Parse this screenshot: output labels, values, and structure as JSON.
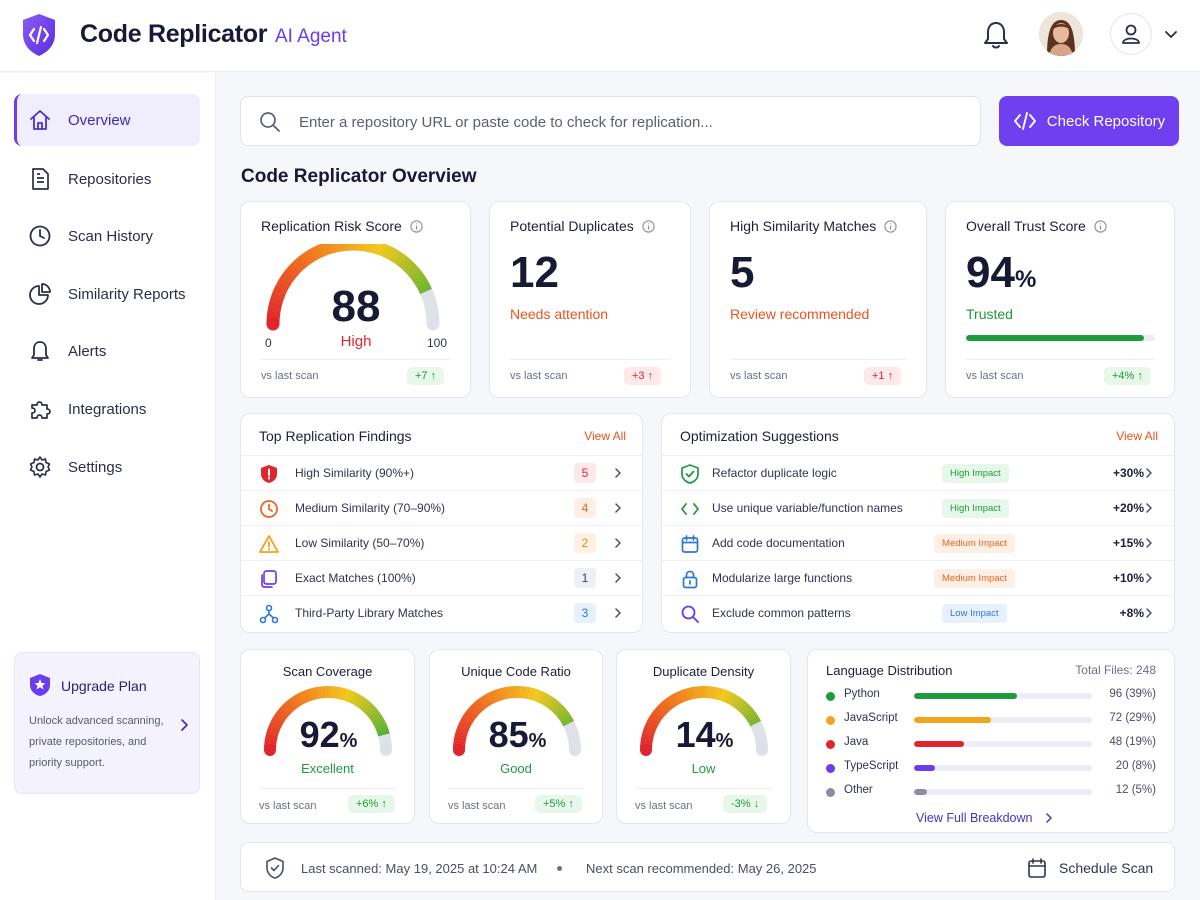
{
  "header": {
    "app_title": "Code Replicator",
    "app_subtitle": "AI Agent",
    "icons": [
      "code-shield-logo",
      "bell-icon",
      "avatar",
      "user-icon",
      "chevron-down-icon"
    ]
  },
  "sidebar": {
    "items": [
      {
        "label": "Overview",
        "icon": "home-icon",
        "active": true
      },
      {
        "label": "Repositories",
        "icon": "document-icon",
        "active": false
      },
      {
        "label": "Scan History",
        "icon": "clock-icon",
        "active": false
      },
      {
        "label": "Similarity Reports",
        "icon": "pie-chart-icon",
        "active": false
      },
      {
        "label": "Alerts",
        "icon": "bell-icon",
        "active": false
      },
      {
        "label": "Integrations",
        "icon": "puzzle-icon",
        "active": false
      },
      {
        "label": "Settings",
        "icon": "gear-icon",
        "active": false
      }
    ],
    "upgrade": {
      "title": "Upgrade Plan",
      "desc": "Unlock advanced scanning, private repositories, and priority support."
    }
  },
  "search": {
    "placeholder": "Enter a repository URL or paste code to check for replication...",
    "value": "",
    "button_label": "Check Repository"
  },
  "overview_title": "Code Replicator Overview",
  "kpis": {
    "risk": {
      "title": "Replication Risk Score",
      "value": "88",
      "level": "High",
      "min": "0",
      "max": "100",
      "vs": "vs last scan",
      "delta": "+7 ↑",
      "fraction": 0.88
    },
    "duplicates": {
      "title": "Potential Duplicates",
      "value": "12",
      "note": "Needs attention",
      "vs": "vs last scan",
      "delta": "+3 ↑"
    },
    "similarity": {
      "title": "High Similarity Matches",
      "value": "5",
      "note": "Review recommended",
      "vs": "vs last scan",
      "delta": "+1 ↑"
    },
    "trust": {
      "title": "Overall Trust Score",
      "value": "94",
      "unit": "%",
      "note": "Trusted",
      "vs": "vs last scan",
      "delta": "+4% ↑",
      "fraction": 0.94
    }
  },
  "findings": {
    "title": "Top Replication Findings",
    "view_all": "View All",
    "rows": [
      {
        "label": "High Similarity (90%+)",
        "count": "5",
        "icon": "alert-shield-icon"
      },
      {
        "label": "Medium Similarity (70–90%)",
        "count": "4",
        "icon": "clock-icon"
      },
      {
        "label": "Low Similarity (50–70%)",
        "count": "2",
        "icon": "warning-icon"
      },
      {
        "label": "Exact Matches (100%)",
        "count": "1",
        "icon": "copy-icon"
      },
      {
        "label": "Third-Party Library Matches",
        "count": "3",
        "icon": "network-icon"
      }
    ]
  },
  "suggestions": {
    "title": "Optimization Suggestions",
    "view_all": "View All",
    "rows": [
      {
        "label": "Refactor duplicate logic",
        "impact": "High Impact",
        "delta": "+30%",
        "icon": "check-shield-icon"
      },
      {
        "label": "Use unique variable/function names",
        "impact": "High Impact",
        "delta": "+20%",
        "icon": "code-icon"
      },
      {
        "label": "Add code documentation",
        "impact": "Medium Impact",
        "delta": "+15%",
        "icon": "calendar-icon"
      },
      {
        "label": "Modularize large functions",
        "impact": "Medium Impact",
        "delta": "+10%",
        "icon": "lock-icon"
      },
      {
        "label": "Exclude common patterns",
        "impact": "Low Impact",
        "delta": "+8%",
        "icon": "search-icon"
      }
    ]
  },
  "mini_gauges": [
    {
      "title": "Scan Coverage",
      "value": "92",
      "unit": "%",
      "note": "Excellent",
      "vs": "vs last scan",
      "delta": "+6% ↑",
      "fraction": 0.92
    },
    {
      "title": "Unique Code Ratio",
      "value": "85",
      "unit": "%",
      "note": "Good",
      "vs": "vs last scan",
      "delta": "+5% ↑",
      "fraction": 0.85
    },
    {
      "title": "Duplicate Density",
      "value": "14",
      "unit": "%",
      "note": "Low",
      "vs": "vs last scan",
      "delta": "-3% ↓",
      "fraction": 0.86
    }
  ],
  "languages": {
    "title": "Language Distribution",
    "total": "Total Files: 248",
    "link": "View Full Breakdown",
    "items": [
      {
        "name": "Python",
        "value": "96 (39%)",
        "color": "#1f9a3c",
        "pct": 39
      },
      {
        "name": "JavaScript",
        "value": "72 (29%)",
        "color": "#f2a41c",
        "pct": 29
      },
      {
        "name": "Java",
        "value": "48 (19%)",
        "color": "#e0262c",
        "pct": 19
      },
      {
        "name": "TypeScript",
        "value": "20 (8%)",
        "color": "#6a3df0",
        "pct": 8
      },
      {
        "name": "Other",
        "value": "12 (5%)",
        "color": "#8a8ea3",
        "pct": 5
      }
    ]
  },
  "footer": {
    "last_scanned": "Last scanned: May 19, 2025 at 10:24 AM",
    "next_scan": "Next scan recommended: May 26, 2025",
    "schedule": "Schedule Scan"
  },
  "colors": {
    "accent": "#6f3ff0",
    "danger": "#e0262c",
    "warning": "#e8661e",
    "success": "#1f9a3c",
    "info": "#2d77d6"
  }
}
